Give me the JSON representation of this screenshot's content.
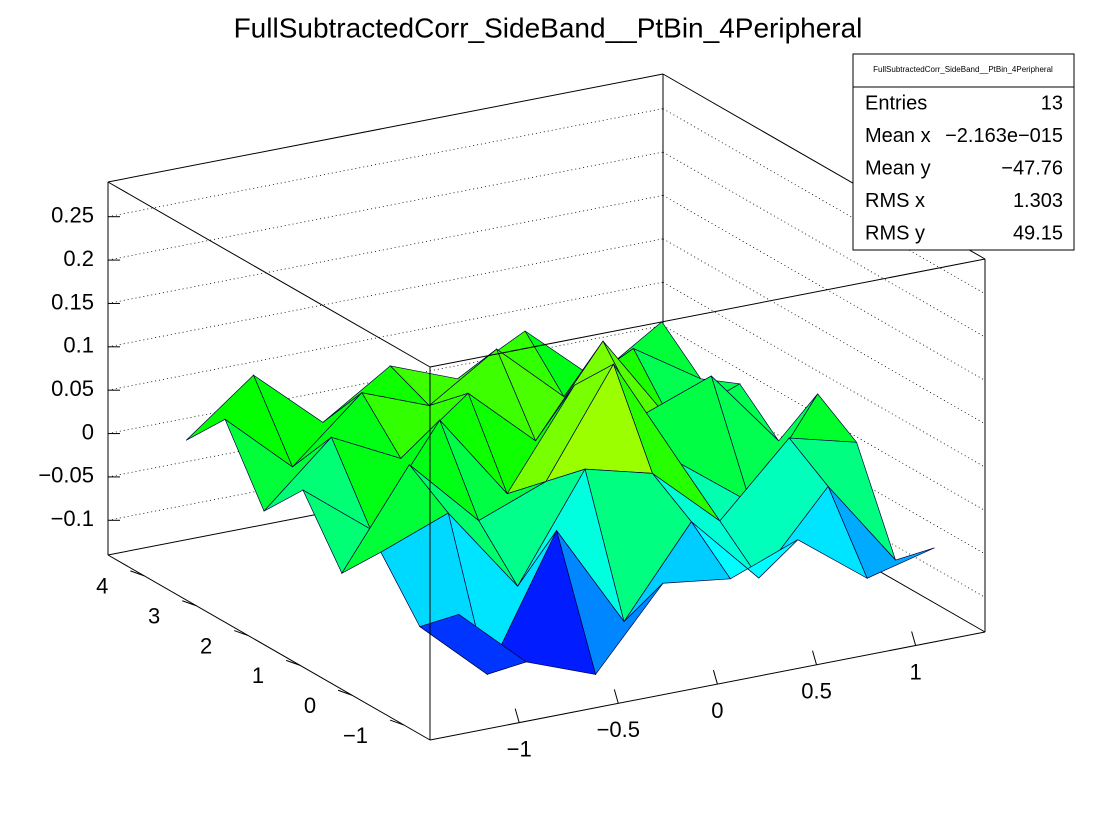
{
  "chart_data": {
    "type": "surface",
    "title": "FullSubtractedCorr_SideBand__PtBin_4Peripheral",
    "x": [
      -1.2,
      -0.86,
      -0.51,
      -0.17,
      0.17,
      0.51,
      0.86,
      1.2
    ],
    "y": [
      -1.1,
      -0.35,
      0.4,
      1.15,
      1.9,
      2.65,
      3.4,
      4.15
    ],
    "z": [
      [
        -0.02,
        -0.09,
        -0.12,
        -0.03,
        -0.04,
        -0.01,
        -0.07,
        -0.05
      ],
      [
        -0.06,
        -0.13,
        0.02,
        -0.1,
        0.0,
        -0.08,
        0.01,
        -0.09
      ],
      [
        0.0,
        0.03,
        -0.07,
        0.05,
        0.03,
        -0.04,
        0.04,
        0.02
      ],
      [
        -0.05,
        0.06,
        -0.02,
        0.01,
        0.13,
        0.0,
        -0.06,
        0.05
      ],
      [
        0.02,
        -0.04,
        0.07,
        -0.03,
        0.08,
        0.03,
        0.06,
        -0.03
      ],
      [
        -0.03,
        0.04,
        0.0,
        0.06,
        -0.01,
        0.09,
        -0.02,
        0.01
      ],
      [
        0.05,
        -0.02,
        0.05,
        0.02,
        0.07,
        0.0,
        0.04,
        -0.01
      ],
      [
        0.0,
        0.06,
        -0.01,
        0.04,
        0.01,
        0.05,
        -0.02,
        0.03
      ]
    ],
    "palette": [
      "#8000ff",
      "#0000ff",
      "#00ffff",
      "#00ff00",
      "#ffff00",
      "#ff0000"
    ],
    "xlim": [
      -1.45,
      1.35
    ],
    "ylim": [
      -1.5,
      4.7
    ],
    "zlim": [
      -0.14,
      0.29
    ],
    "xticks": [
      {
        "value": -1,
        "label": "−1"
      },
      {
        "value": -0.5,
        "label": "−0.5"
      },
      0,
      0.5,
      1
    ],
    "yticks": [
      {
        "value": -1,
        "label": "−1"
      },
      0,
      1,
      2,
      3,
      4
    ],
    "zticks": [
      {
        "value": -0.1,
        "label": "−0.1"
      },
      {
        "value": -0.05,
        "label": "−0.05"
      },
      0,
      0.05,
      0.1,
      0.15,
      0.2,
      0.25
    ],
    "grid": true,
    "stats": {
      "title": "FullSubtractedCorr_SideBand__PtBin_4Peripheral",
      "rows": [
        {
          "label": "Entries",
          "value": "13"
        },
        {
          "label": "Mean x",
          "value": "−2.163e−015"
        },
        {
          "label": "Mean y",
          "value": "−47.76"
        },
        {
          "label": "RMS x",
          "value": "1.303"
        },
        {
          "label": "RMS y",
          "value": "49.15"
        }
      ]
    }
  }
}
